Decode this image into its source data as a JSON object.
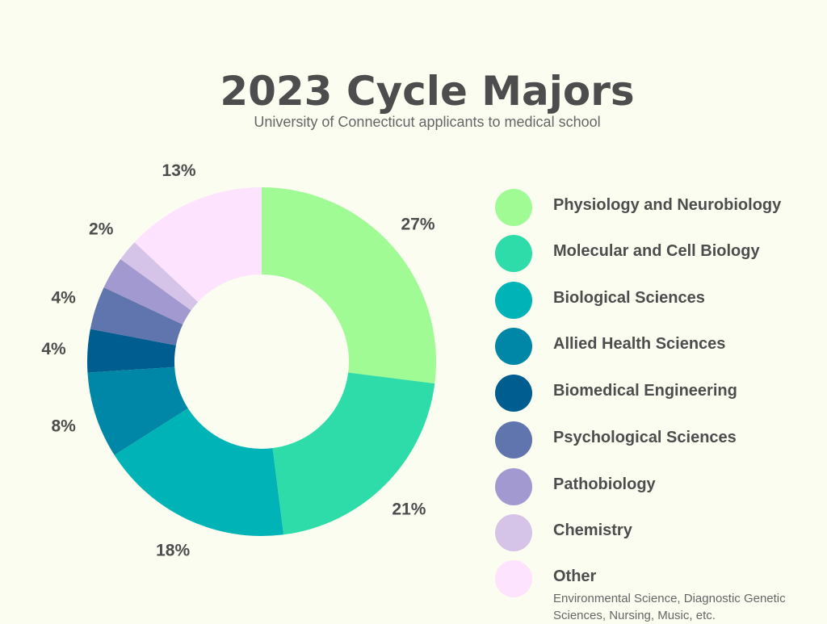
{
  "page": {
    "title": "2023 Cycle Majors",
    "subtitle": "University of Connecticut applicants to medical school"
  },
  "chart_data": {
    "type": "pie",
    "donut": true,
    "title": "2023 Cycle Majors",
    "subtitle": "University of Connecticut applicants to medical school",
    "legend_position": "right",
    "slices": [
      {
        "label": "Physiology and Neurobiology",
        "value": 27,
        "display": "27%",
        "color": "#a0fb95"
      },
      {
        "label": "Molecular and Cell Biology",
        "value": 21,
        "display": "21%",
        "color": "#2edcaa"
      },
      {
        "label": "Biological Sciences",
        "value": 18,
        "display": "18%",
        "color": "#00b3b6"
      },
      {
        "label": "Allied Health Sciences",
        "value": 8,
        "display": "8%",
        "color": "#0086a6"
      },
      {
        "label": "Biomedical Engineering",
        "value": 4,
        "display": "4%",
        "color": "#005d8f"
      },
      {
        "label": "Psychological Sciences",
        "value": 4,
        "display": "4%",
        "color": "#6074ad"
      },
      {
        "label": "Pathobiology",
        "value": 3,
        "display": "",
        "color": "#a199cf"
      },
      {
        "label": "Chemistry",
        "value": 2,
        "display": "2%",
        "color": "#d5c3e8"
      },
      {
        "label": "Other",
        "value": 13,
        "display": "13%",
        "color": "#fde3fe",
        "note": "Environmental Science, Diagnostic Genetic Sciences, Nursing, Music, etc."
      }
    ]
  }
}
